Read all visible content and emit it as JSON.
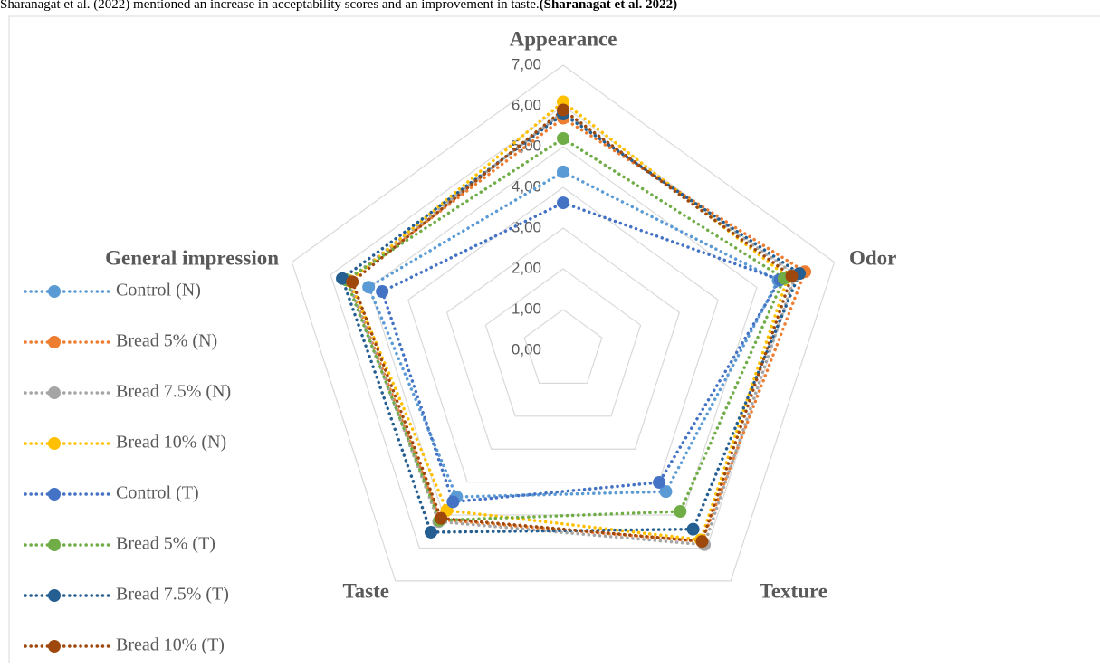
{
  "caption": "Sharanagat et al. (2022) mentioned an increase in acceptability scores and an improvement in taste.",
  "caption_cite": "(Sharanagat et al. 2022)",
  "chart_data": {
    "type": "radar",
    "categories": [
      "Appearance",
      "Odor",
      "Texture",
      "Taste",
      "General impression"
    ],
    "ylim": [
      0,
      7
    ],
    "yticks": [
      {
        "value": 0,
        "label": "0,00"
      },
      {
        "value": 1,
        "label": "1,00"
      },
      {
        "value": 2,
        "label": "2,00"
      },
      {
        "value": 3,
        "label": "3,00"
      },
      {
        "value": 4,
        "label": "4,00"
      },
      {
        "value": 5,
        "label": "5,00"
      },
      {
        "value": 6,
        "label": "6,00"
      },
      {
        "value": 7,
        "label": "7,00"
      }
    ],
    "grid": true,
    "legend": "left",
    "series": [
      {
        "name": "Control (N)",
        "color": "#5b9bd5",
        "values": [
          4.38,
          5.55,
          4.29,
          4.45,
          5.02
        ]
      },
      {
        "name": "Bread 5% (N)",
        "color": "#ed7d31",
        "values": [
          5.7,
          6.24,
          5.8,
          5.14,
          5.54
        ]
      },
      {
        "name": "Bread 7.5% (N)",
        "color": "#a5a5a5",
        "values": [
          5.85,
          6.0,
          5.9,
          5.2,
          5.56
        ]
      },
      {
        "name": "Bread 10% (N)",
        "color": "#ffc000",
        "values": [
          6.1,
          5.8,
          5.75,
          4.86,
          5.5
        ]
      },
      {
        "name": "Control (T)",
        "color": "#4472c4",
        "values": [
          3.62,
          5.6,
          4.01,
          4.6,
          4.67
        ]
      },
      {
        "name": "Bread 5% (T)",
        "color": "#70ad47",
        "values": [
          5.2,
          5.7,
          4.89,
          5.16,
          5.6
        ]
      },
      {
        "name": "Bread 7.5% (T)",
        "color": "#255e91",
        "values": [
          5.8,
          6.1,
          5.43,
          5.52,
          5.7
        ]
      },
      {
        "name": "Bread 10% (T)",
        "color": "#9e480e",
        "values": [
          5.9,
          5.9,
          5.8,
          5.1,
          5.44
        ]
      }
    ]
  }
}
